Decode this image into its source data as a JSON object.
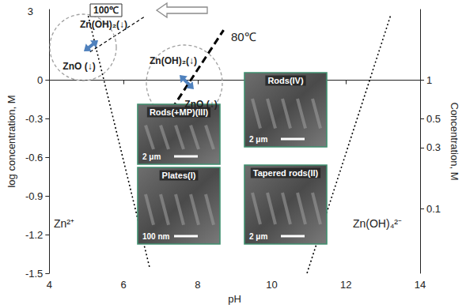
{
  "chart_data": {
    "type": "line",
    "xlabel": "pH",
    "ylabel": "Concentration, M",
    "y2label": "log concentration, M",
    "xlim": [
      4,
      14
    ],
    "xticks": [
      4,
      6,
      8,
      10,
      12,
      14
    ],
    "ylim": [
      0.03162,
      3.548
    ],
    "yticks": [
      0.1,
      0.3,
      0.5,
      1
    ],
    "log": "y",
    "y2lim": [
      -1.5,
      0.55
    ],
    "y2ticks": [
      -1.5,
      -1.2,
      -0.9,
      -0.6,
      -0.3,
      0
    ],
    "grid": false,
    "series": [
      {
        "x": [
          5.05,
          6.7
        ],
        "values": [
          0.5,
          -1.45
        ],
        "color": "#000000",
        "line_style": "dotted",
        "axis": "y2"
      },
      {
        "x": [
          10.95,
          13.2
        ],
        "values": [
          -1.5,
          0.5
        ],
        "color": "#000000",
        "line_style": "dotted",
        "axis": "y2"
      },
      {
        "x": [
          6.65,
          8.7
        ],
        "values": [
          -0.51,
          0.39
        ],
        "color": "#000000",
        "line_style": "bold_dashed",
        "axis": "y2"
      },
      {
        "x": [
          5.1,
          6.6
        ],
        "values": [
          0.22,
          0.5
        ],
        "color": "#000000",
        "line_style": "dashed",
        "axis": "y2"
      }
    ],
    "annotations": [
      {
        "text": "3"
      },
      {
        "text": "Zn(OH)₂(↓)"
      },
      {
        "text": "ZnO (↓)"
      },
      {
        "text": "Zn(OH)₂(↓)"
      },
      {
        "text": "ZnO (↓)"
      },
      {
        "text": "100℃"
      },
      {
        "text": "80℃"
      },
      {
        "text": "Zn²⁺"
      },
      {
        "text": "Zn(OH)₄²⁻"
      }
    ],
    "insets": [
      {
        "label": "Rods(+MP)(III)",
        "scale_bar": "2 μm"
      },
      {
        "label": "Plates(I)",
        "scale_bar": "100 nm"
      },
      {
        "label": "Rods(IV)",
        "scale_bar": "2 μm"
      },
      {
        "label": "Tapered rods(II)",
        "scale_bar": "2 μm"
      }
    ]
  }
}
